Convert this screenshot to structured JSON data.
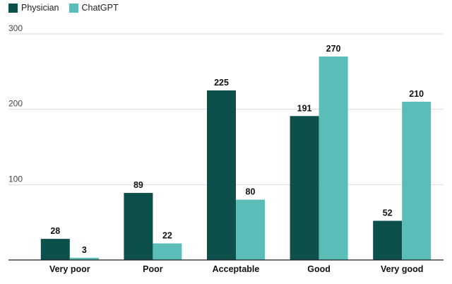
{
  "colors": {
    "physician": "#0c4f4b",
    "chatgpt": "#5bbdb8",
    "grid": "#dcdcdc",
    "axis": "#222222"
  },
  "legend": [
    {
      "label": "Physician",
      "color": "#0c4f4b"
    },
    {
      "label": "ChatGPT",
      "color": "#5bbdb8"
    }
  ],
  "chart_data": {
    "type": "bar",
    "categories": [
      "Very poor",
      "Poor",
      "Acceptable",
      "Good",
      "Very good"
    ],
    "series": [
      {
        "name": "Physician",
        "values": [
          28,
          89,
          225,
          191,
          52
        ]
      },
      {
        "name": "ChatGPT",
        "values": [
          3,
          22,
          80,
          270,
          210
        ]
      }
    ],
    "yticks": [
      100,
      200,
      300
    ],
    "ylim": [
      0,
      300
    ],
    "grid": true,
    "legend_position": "top-left",
    "title": "",
    "xlabel": "",
    "ylabel": ""
  }
}
